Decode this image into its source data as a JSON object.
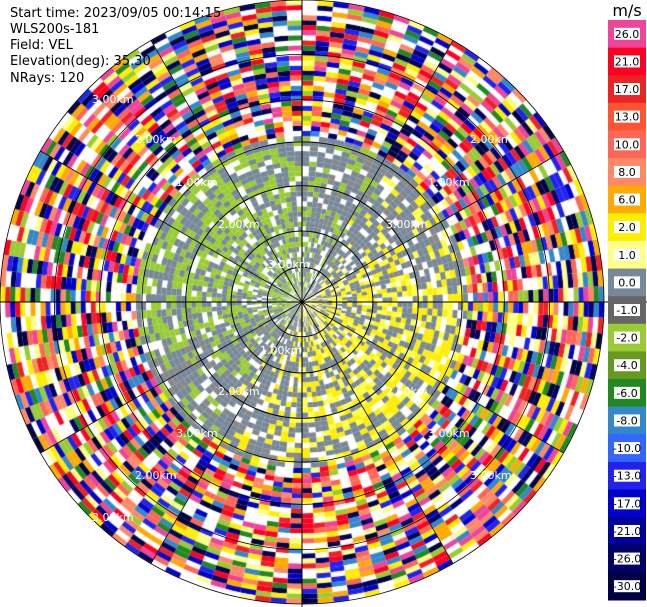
{
  "info": {
    "start_time": "Start time: 2023/09/05 00:14:15",
    "instrument": "WLS200s-181",
    "field": "Field: VEL",
    "elevation": "Elevation(deg): 35.30",
    "nrays": "NRays: 120"
  },
  "colorbar": {
    "unit": "m/s",
    "ticks": [
      "26.0",
      "21.0",
      "17.0",
      "13.0",
      "10.0",
      "8.0",
      "6.0",
      "2.0",
      "1.0",
      "0.0",
      "-1.0",
      "-2.0",
      "-4.0",
      "-6.0",
      "-8.0",
      "-10.0",
      "-13.0",
      "-17.0",
      "-21.0",
      "-26.0",
      "-30.0"
    ],
    "colors": [
      "#ee4499",
      "#ff0022",
      "#ee2222",
      "#ff5533",
      "#ff6655",
      "#ff8866",
      "#ffaa00",
      "#ffee00",
      "#ffff88",
      "#778899",
      "#666666",
      "#99cc33",
      "#669922",
      "#228822",
      "#3388cc",
      "#3366ff",
      "#2222ee",
      "#0000cc",
      "#000099",
      "#000066",
      "#000044"
    ]
  },
  "chart_data": {
    "type": "ppi",
    "field": "VEL",
    "nrays": 120,
    "elevation_deg": 35.3,
    "range_rings_km": [
      1.0,
      2.0,
      3.0
    ],
    "range_labels": [
      "1.00km",
      "2.00km",
      "3.00km",
      "2.00km",
      "3.00km"
    ],
    "range_ring_labels_upper": [
      "3.00km",
      "2.00km",
      "1.00km",
      "2.00km",
      "3.00km",
      "1.00km",
      "2.00km",
      "3.00km"
    ],
    "range_ring_labels_lower": [
      "1.00km",
      "2.00km",
      "3.00km",
      "2.00km",
      "3.00km",
      "2.00km",
      "3.00km",
      "3.00km"
    ],
    "unit": "m/s",
    "vmin": -30.0,
    "vmax": 26.0
  }
}
